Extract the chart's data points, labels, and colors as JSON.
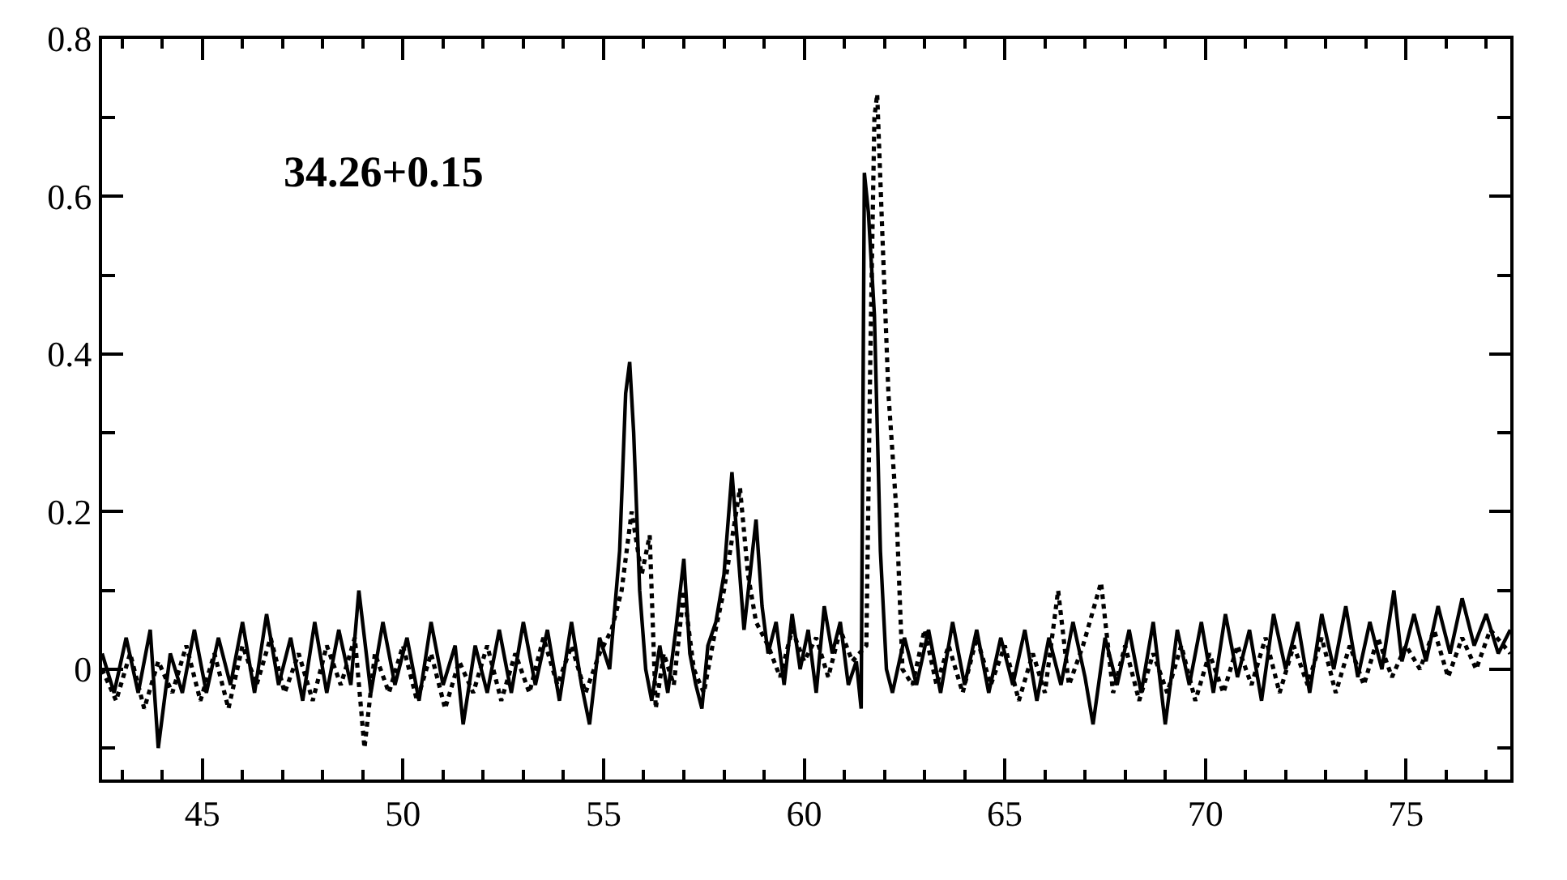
{
  "chart_data": {
    "type": "line",
    "annotations": [
      "34.26+0.15"
    ],
    "xlim": [
      42.5,
      77.6
    ],
    "xticks": [
      45,
      50,
      55,
      60,
      65,
      70,
      75,
      {
        "value": 43,
        "label": null
      },
      {
        "value": 44,
        "label": null
      },
      {
        "value": 46,
        "label": null
      },
      {
        "value": 47,
        "label": null
      },
      {
        "value": 48,
        "label": null
      },
      {
        "value": 49,
        "label": null
      },
      {
        "value": 51,
        "label": null
      },
      {
        "value": 52,
        "label": null
      },
      {
        "value": 53,
        "label": null
      },
      {
        "value": 54,
        "label": null
      },
      {
        "value": 56,
        "label": null
      },
      {
        "value": 57,
        "label": null
      },
      {
        "value": 58,
        "label": null
      },
      {
        "value": 59,
        "label": null
      },
      {
        "value": 61,
        "label": null
      },
      {
        "value": 62,
        "label": null
      },
      {
        "value": 63,
        "label": null
      },
      {
        "value": 64,
        "label": null
      },
      {
        "value": 66,
        "label": null
      },
      {
        "value": 67,
        "label": null
      },
      {
        "value": 68,
        "label": null
      },
      {
        "value": 69,
        "label": null
      },
      {
        "value": 71,
        "label": null
      },
      {
        "value": 72,
        "label": null
      },
      {
        "value": 73,
        "label": null
      },
      {
        "value": 74,
        "label": null
      },
      {
        "value": 76,
        "label": null
      },
      {
        "value": 77,
        "label": null
      }
    ],
    "ylim": [
      -0.14,
      0.8
    ],
    "yticks": [
      0,
      0.2,
      0.4,
      0.6,
      0.8,
      {
        "value": -0.1,
        "label": null
      },
      {
        "value": 0.1,
        "label": null
      },
      {
        "value": 0.3,
        "label": null
      },
      {
        "value": 0.5,
        "label": null
      },
      {
        "value": 0.7,
        "label": null
      }
    ],
    "series": [
      {
        "color": "#000000",
        "line_style": "solid",
        "x": [
          42.5,
          42.8,
          43.1,
          43.4,
          43.7,
          43.9,
          44.2,
          44.5,
          44.8,
          45.1,
          45.4,
          45.7,
          46.0,
          46.3,
          46.6,
          46.9,
          47.2,
          47.5,
          47.8,
          48.1,
          48.4,
          48.7,
          48.9,
          49.2,
          49.5,
          49.8,
          50.1,
          50.4,
          50.7,
          51.0,
          51.3,
          51.5,
          51.8,
          52.1,
          52.4,
          52.7,
          53.0,
          53.3,
          53.6,
          53.9,
          54.2,
          54.45,
          54.65,
          54.9,
          55.15,
          55.4,
          55.55,
          55.65,
          55.75,
          55.9,
          56.05,
          56.2,
          56.4,
          56.6,
          56.8,
          57.0,
          57.15,
          57.3,
          57.45,
          57.6,
          57.8,
          58.0,
          58.2,
          58.35,
          58.5,
          58.65,
          58.8,
          58.95,
          59.1,
          59.3,
          59.5,
          59.7,
          59.9,
          60.1,
          60.3,
          60.5,
          60.7,
          60.9,
          61.1,
          61.3,
          61.42,
          61.5,
          61.6,
          61.75,
          61.9,
          62.05,
          62.2,
          62.5,
          62.8,
          63.1,
          63.4,
          63.7,
          64.0,
          64.3,
          64.6,
          64.9,
          65.2,
          65.5,
          65.8,
          66.1,
          66.4,
          66.7,
          67.0,
          67.2,
          67.5,
          67.8,
          68.1,
          68.4,
          68.7,
          69.0,
          69.3,
          69.6,
          69.9,
          70.2,
          70.5,
          70.8,
          71.1,
          71.4,
          71.7,
          72.0,
          72.3,
          72.6,
          72.9,
          73.2,
          73.5,
          73.8,
          74.1,
          74.4,
          74.7,
          74.9,
          75.2,
          75.5,
          75.8,
          76.1,
          76.4,
          76.7,
          77.0,
          77.3,
          77.6
        ],
        "values": [
          0.02,
          -0.03,
          0.04,
          -0.03,
          0.05,
          -0.1,
          0.02,
          -0.03,
          0.05,
          -0.03,
          0.04,
          -0.02,
          0.06,
          -0.03,
          0.07,
          -0.02,
          0.04,
          -0.04,
          0.06,
          -0.03,
          0.05,
          -0.02,
          0.1,
          -0.03,
          0.06,
          -0.02,
          0.04,
          -0.04,
          0.06,
          -0.02,
          0.03,
          -0.07,
          0.03,
          -0.03,
          0.05,
          -0.03,
          0.06,
          -0.02,
          0.05,
          -0.04,
          0.06,
          -0.02,
          -0.07,
          0.04,
          0.0,
          0.15,
          0.35,
          0.39,
          0.3,
          0.1,
          0.0,
          -0.04,
          0.03,
          -0.03,
          0.05,
          0.14,
          0.02,
          -0.02,
          -0.05,
          0.03,
          0.06,
          0.12,
          0.25,
          0.15,
          0.05,
          0.12,
          0.19,
          0.08,
          0.02,
          0.06,
          -0.02,
          0.07,
          0.0,
          0.05,
          -0.03,
          0.08,
          0.02,
          0.06,
          -0.02,
          0.01,
          -0.05,
          0.63,
          0.58,
          0.45,
          0.15,
          0.0,
          -0.03,
          0.04,
          -0.02,
          0.05,
          -0.03,
          0.06,
          -0.02,
          0.05,
          -0.03,
          0.04,
          -0.02,
          0.05,
          -0.04,
          0.04,
          -0.02,
          0.06,
          -0.01,
          -0.07,
          0.04,
          -0.02,
          0.05,
          -0.03,
          0.06,
          -0.07,
          0.05,
          -0.02,
          0.06,
          -0.03,
          0.07,
          -0.01,
          0.05,
          -0.04,
          0.07,
          0.0,
          0.06,
          -0.03,
          0.07,
          0.0,
          0.08,
          -0.01,
          0.06,
          0.0,
          0.1,
          0.01,
          0.07,
          0.01,
          0.08,
          0.02,
          0.09,
          0.03,
          0.07,
          0.02,
          0.05
        ]
      },
      {
        "color": "#000000",
        "line_style": "dotted",
        "x": [
          42.5,
          42.85,
          43.2,
          43.55,
          43.9,
          44.25,
          44.6,
          44.95,
          45.3,
          45.65,
          46.0,
          46.35,
          46.7,
          47.05,
          47.4,
          47.75,
          48.1,
          48.45,
          48.8,
          49.04,
          49.3,
          49.65,
          50.0,
          50.35,
          50.7,
          51.05,
          51.4,
          51.75,
          52.1,
          52.45,
          52.8,
          53.15,
          53.5,
          53.85,
          54.2,
          54.55,
          54.9,
          55.2,
          55.45,
          55.7,
          55.95,
          56.15,
          56.3,
          56.5,
          56.75,
          57.0,
          57.25,
          57.5,
          57.75,
          58.0,
          58.4,
          58.6,
          58.8,
          59.1,
          59.4,
          59.7,
          60.0,
          60.3,
          60.6,
          60.9,
          61.2,
          61.55,
          61.65,
          61.75,
          61.82,
          61.95,
          62.1,
          62.3,
          62.45,
          62.7,
          63.0,
          63.3,
          63.6,
          63.95,
          64.3,
          64.65,
          65.0,
          65.35,
          65.7,
          66.0,
          66.33,
          66.6,
          66.95,
          67.4,
          67.7,
          68.0,
          68.35,
          68.7,
          69.05,
          69.4,
          69.75,
          70.1,
          70.45,
          70.8,
          71.15,
          71.5,
          71.85,
          72.2,
          72.55,
          72.9,
          73.25,
          73.6,
          73.95,
          74.3,
          74.65,
          75.0,
          75.35,
          75.7,
          76.05,
          76.4,
          76.75,
          77.1,
          77.6
        ],
        "values": [
          0.0,
          -0.04,
          0.02,
          -0.05,
          0.01,
          -0.03,
          0.03,
          -0.04,
          0.02,
          -0.05,
          0.03,
          -0.02,
          0.04,
          -0.03,
          0.02,
          -0.04,
          0.03,
          -0.02,
          0.04,
          -0.1,
          0.02,
          -0.03,
          0.03,
          -0.04,
          0.02,
          -0.05,
          0.01,
          -0.03,
          0.03,
          -0.04,
          0.02,
          -0.03,
          0.04,
          -0.02,
          0.03,
          -0.03,
          0.02,
          0.05,
          0.1,
          0.2,
          0.12,
          0.17,
          -0.05,
          0.02,
          -0.02,
          0.1,
          0.0,
          -0.03,
          0.04,
          0.1,
          0.23,
          0.12,
          0.06,
          0.03,
          -0.01,
          0.05,
          0.01,
          0.04,
          -0.01,
          0.05,
          0.01,
          0.03,
          0.4,
          0.7,
          0.73,
          0.55,
          0.35,
          0.2,
          0.0,
          -0.02,
          0.05,
          -0.02,
          0.03,
          -0.03,
          0.04,
          -0.02,
          0.03,
          -0.04,
          0.02,
          -0.03,
          0.1,
          -0.02,
          0.03,
          0.11,
          -0.03,
          0.03,
          -0.04,
          0.02,
          -0.03,
          0.03,
          -0.04,
          0.02,
          -0.03,
          0.03,
          -0.02,
          0.04,
          -0.03,
          0.03,
          -0.02,
          0.04,
          -0.03,
          0.03,
          -0.02,
          0.04,
          -0.01,
          0.03,
          0.0,
          0.05,
          -0.01,
          0.04,
          0.0,
          0.05,
          0.02
        ]
      }
    ]
  }
}
